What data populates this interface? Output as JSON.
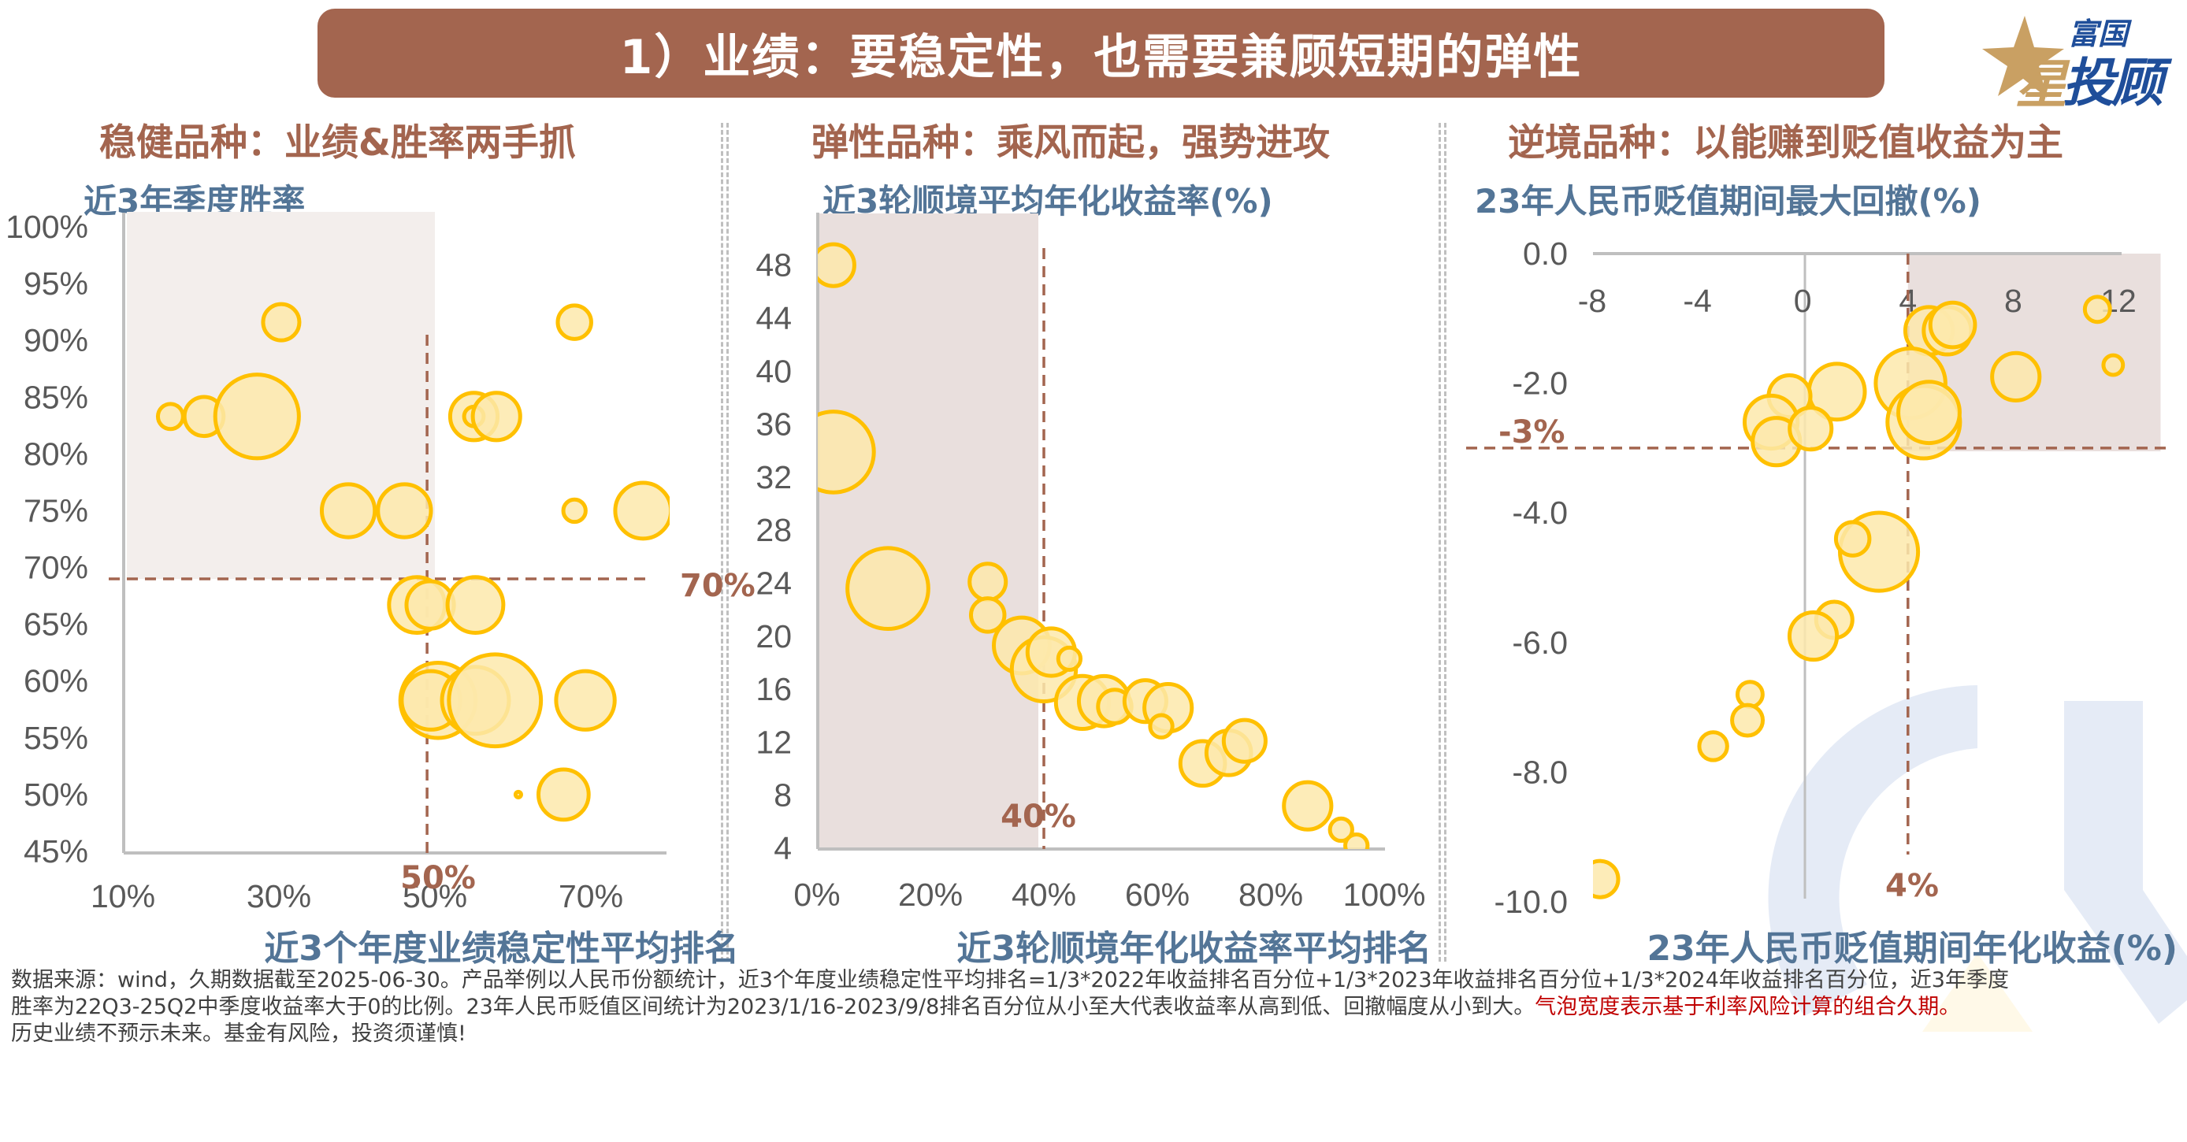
{
  "header": {
    "title": "1）业绩：要稳定性，也需要兼顾短期的弹性"
  },
  "logo": {
    "line1": "富国",
    "star_char": "星",
    "line2": "投顾",
    "icon": "star-icon"
  },
  "sections": [
    {
      "title": "稳健品种：业绩&胜率两手抓"
    },
    {
      "title": "弹性品种：乘风而起，强势进攻"
    },
    {
      "title": "逆境品种：以能赚到贬值收益为主"
    }
  ],
  "colors": {
    "brand_brown": "#A3654F",
    "title_blue": "#537597",
    "bubble_fill": "#FDE9AB",
    "bubble_stroke": "#FFC000",
    "shade_light": "#F3EEEC",
    "shade": "#E9DFDD",
    "axis": "#BFBFBF",
    "footnote_red": "#C00000"
  },
  "chart_data": [
    {
      "type": "scatter",
      "subtype": "bubble",
      "title": "近3年季度胜率",
      "xlabel": "近3个年度业绩稳定性平均排名",
      "ylabel": "近3年季度胜率",
      "xlim": [
        10,
        80
      ],
      "ylim": [
        45,
        100
      ],
      "x_ticks": [
        "10%",
        "30%",
        "50%",
        "70%"
      ],
      "x_tick_values": [
        10,
        30,
        50,
        70
      ],
      "y_ticks": [
        "100%",
        "95%",
        "90%",
        "85%",
        "80%",
        "75%",
        "70%",
        "65%",
        "60%",
        "55%",
        "50%",
        "45%"
      ],
      "y_tick_values": [
        100,
        95,
        90,
        85,
        80,
        75,
        70,
        65,
        60,
        55,
        50,
        45
      ],
      "grid": false,
      "reference_lines": {
        "x": 49,
        "x_label": "50%",
        "y": 69,
        "y_label": "70%"
      },
      "highlight_region": {
        "x": [
          10,
          50
        ],
        "y": [
          69,
          100
        ]
      },
      "bubble_size_meaning": "组合久期（相对大小）",
      "points": [
        {
          "x": 16.1,
          "y": 83.3,
          "size": 9
        },
        {
          "x": 20.4,
          "y": 83.3,
          "size": 14
        },
        {
          "x": 27.2,
          "y": 83.3,
          "size": 30
        },
        {
          "x": 30.3,
          "y": 91.6,
          "size": 13
        },
        {
          "x": 38.9,
          "y": 75.0,
          "size": 19
        },
        {
          "x": 46.1,
          "y": 75.0,
          "size": 19
        },
        {
          "x": 67.9,
          "y": 91.6,
          "size": 12
        },
        {
          "x": 55.0,
          "y": 83.3,
          "size": 17
        },
        {
          "x": 55.0,
          "y": 83.3,
          "size": 7
        },
        {
          "x": 57.9,
          "y": 83.3,
          "size": 17
        },
        {
          "x": 67.9,
          "y": 75.0,
          "size": 8
        },
        {
          "x": 76.7,
          "y": 75.0,
          "size": 20
        },
        {
          "x": 47.7,
          "y": 66.7,
          "size": 20
        },
        {
          "x": 49.4,
          "y": 66.7,
          "size": 17
        },
        {
          "x": 55.2,
          "y": 66.7,
          "size": 20
        },
        {
          "x": 50.4,
          "y": 58.3,
          "size": 27
        },
        {
          "x": 49.5,
          "y": 58.3,
          "size": 21
        },
        {
          "x": 55.2,
          "y": 58.3,
          "size": 24
        },
        {
          "x": 57.7,
          "y": 58.3,
          "size": 33
        },
        {
          "x": 69.3,
          "y": 58.3,
          "size": 21
        },
        {
          "x": 60.7,
          "y": 50.0,
          "size": 2
        },
        {
          "x": 66.5,
          "y": 50.0,
          "size": 18
        }
      ]
    },
    {
      "type": "scatter",
      "subtype": "bubble",
      "title": "近3轮顺境平均年化收益率(%)",
      "xlabel": "近3轮顺境年化收益率平均排名",
      "ylabel": "近3轮顺境平均年化收益率(%)",
      "xlim": [
        0,
        100
      ],
      "ylim": [
        4,
        50
      ],
      "x_ticks": [
        "0%",
        "20%",
        "40%",
        "60%",
        "80%",
        "100%"
      ],
      "x_tick_values": [
        0,
        20,
        40,
        60,
        80,
        100
      ],
      "y_ticks": [
        "48",
        "44",
        "40",
        "36",
        "32",
        "28",
        "24",
        "20",
        "16",
        "12",
        "8",
        "4"
      ],
      "y_tick_values": [
        48,
        44,
        40,
        36,
        32,
        28,
        24,
        20,
        16,
        12,
        8,
        4
      ],
      "grid": false,
      "reference_lines": {
        "x": 40,
        "x_label": "40%"
      },
      "highlight_region": {
        "x": [
          0,
          40
        ],
        "y": [
          4,
          50
        ]
      },
      "bubble_size_meaning": "组合久期（相对大小）",
      "points": [
        {
          "x": 2.9,
          "y": 48.0,
          "size": 15
        },
        {
          "x": 2.9,
          "y": 33.9,
          "size": 29
        },
        {
          "x": 12.5,
          "y": 23.6,
          "size": 29
        },
        {
          "x": 30.1,
          "y": 24.1,
          "size": 13
        },
        {
          "x": 30.1,
          "y": 21.6,
          "size": 12
        },
        {
          "x": 36.1,
          "y": 19.3,
          "size": 20
        },
        {
          "x": 40.0,
          "y": 17.5,
          "size": 23
        },
        {
          "x": 41.3,
          "y": 18.8,
          "size": 17
        },
        {
          "x": 44.5,
          "y": 18.3,
          "size": 8
        },
        {
          "x": 46.8,
          "y": 15.0,
          "size": 19
        },
        {
          "x": 50.6,
          "y": 15.1,
          "size": 18
        },
        {
          "x": 52.5,
          "y": 14.7,
          "size": 12
        },
        {
          "x": 57.9,
          "y": 15.1,
          "size": 15
        },
        {
          "x": 61.9,
          "y": 14.6,
          "size": 17
        },
        {
          "x": 60.7,
          "y": 13.2,
          "size": 8
        },
        {
          "x": 68.0,
          "y": 10.4,
          "size": 16
        },
        {
          "x": 72.6,
          "y": 11.2,
          "size": 16
        },
        {
          "x": 75.4,
          "y": 12.1,
          "size": 15
        },
        {
          "x": 86.5,
          "y": 7.2,
          "size": 17
        },
        {
          "x": 92.4,
          "y": 5.4,
          "size": 8
        },
        {
          "x": 95.1,
          "y": 4.2,
          "size": 8
        }
      ]
    },
    {
      "type": "scatter",
      "subtype": "bubble",
      "title": "23年人民币贬值期间最大回撤(%)",
      "xlabel": "23年人民币贬值期间年化收益(%)",
      "ylabel": "23年人民币贬值期间最大回撤(%)",
      "xlim": [
        -8,
        12
      ],
      "ylim": [
        -10,
        0
      ],
      "x_ticks": [
        "-8",
        "-4",
        "0",
        "4",
        "8",
        "12"
      ],
      "x_tick_values": [
        -8,
        -4,
        0,
        4,
        8,
        12
      ],
      "y_ticks": [
        "0.0",
        "-2.0",
        "-4.0",
        "-6.0",
        "-8.0",
        "-10.0"
      ],
      "y_tick_values": [
        0,
        -2,
        -4,
        -6,
        -8,
        -10
      ],
      "grid": false,
      "reference_lines": {
        "x": 4,
        "x_label": "4%",
        "y": -3,
        "y_label": "-3%"
      },
      "highlight_region": {
        "x": [
          4,
          13.6
        ],
        "y": [
          -3,
          0
        ]
      },
      "bubble_size_meaning": "组合久期（相对大小）",
      "points": [
        {
          "x": 11.2,
          "y": -0.86,
          "size": 9
        },
        {
          "x": 11.8,
          "y": -1.72,
          "size": 7
        },
        {
          "x": 4.8,
          "y": -1.19,
          "size": 17
        },
        {
          "x": 5.5,
          "y": -1.19,
          "size": 17
        },
        {
          "x": 5.7,
          "y": -1.1,
          "size": 16
        },
        {
          "x": 8.1,
          "y": -1.9,
          "size": 17
        },
        {
          "x": 1.3,
          "y": -2.13,
          "size": 20
        },
        {
          "x": -0.5,
          "y": -2.2,
          "size": 15
        },
        {
          "x": 4.1,
          "y": -2.0,
          "size": 25
        },
        {
          "x": 4.6,
          "y": -2.6,
          "size": 26
        },
        {
          "x": 4.8,
          "y": -2.45,
          "size": 22
        },
        {
          "x": -1.2,
          "y": -2.6,
          "size": 19
        },
        {
          "x": -1.0,
          "y": -2.9,
          "size": 17
        },
        {
          "x": 0.3,
          "y": -2.7,
          "size": 15
        },
        {
          "x": 2.9,
          "y": -4.6,
          "size": 28
        },
        {
          "x": 1.9,
          "y": -4.4,
          "size": 12
        },
        {
          "x": 1.2,
          "y": -5.65,
          "size": 13
        },
        {
          "x": 0.4,
          "y": -5.9,
          "size": 17
        },
        {
          "x": -2.0,
          "y": -6.8,
          "size": 9
        },
        {
          "x": -2.1,
          "y": -7.2,
          "size": 11
        },
        {
          "x": -3.4,
          "y": -7.6,
          "size": 10
        },
        {
          "x": -7.7,
          "y": -9.65,
          "size": 13
        }
      ]
    }
  ],
  "footnote": {
    "line1": "数据来源：wind，久期数据截至2025-06-30。产品举例以人民币份额统计，近3个年度业绩稳定性平均排名=1/3*2022年收益排名百分位+1/3*2023年收益排名百分位+1/3*2024年收益排名百分位，近3年季度",
    "line2": "胜率为22Q3-25Q2中季度收益率大于0的比例。23年人民币贬值区间统计为2023/1/16-2023/9/8排名百分位从小至大代表收益率从高到低、回撤幅度从小到大。",
    "line2_red": "气泡宽度表示基于利率风险计算的组合久期。",
    "line3": "历史业绩不预示未来。基金有风险，投资须谨慎!"
  }
}
